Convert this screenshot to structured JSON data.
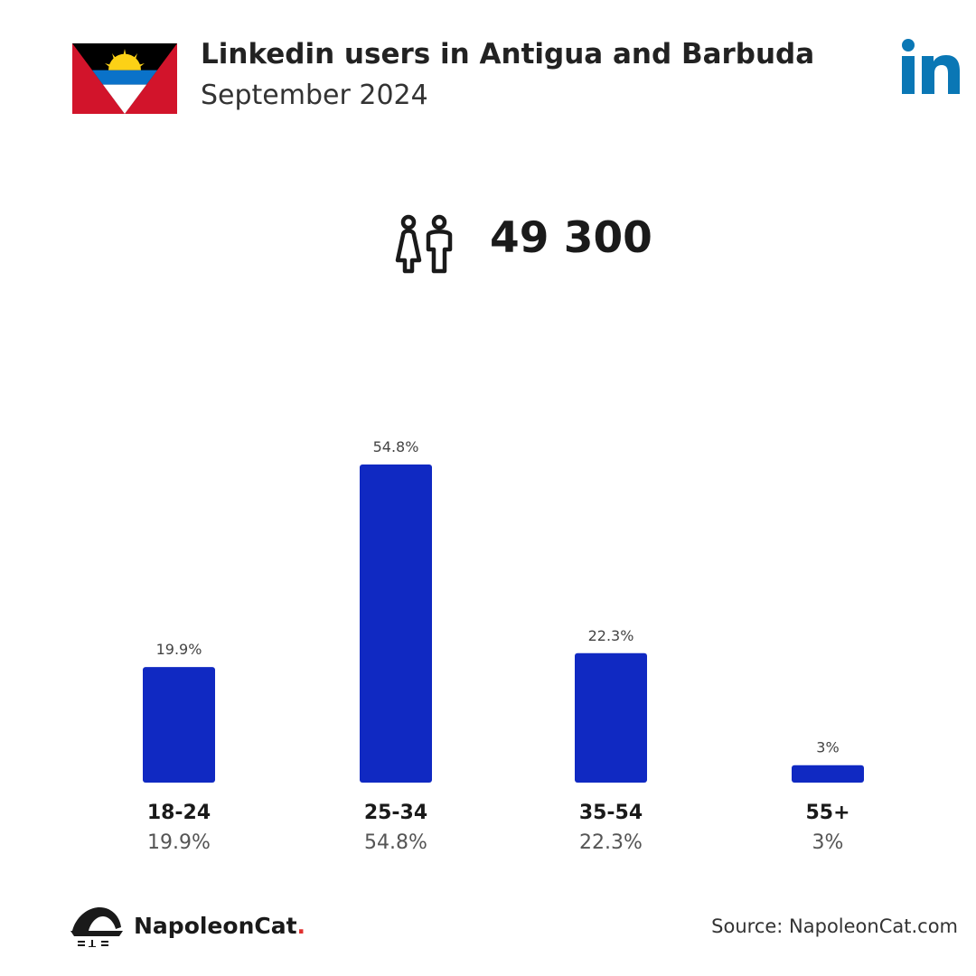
{
  "header": {
    "title": "Linkedin users in Antigua and Barbuda",
    "subtitle": "September 2024"
  },
  "flag": {
    "name": "antigua-and-barbuda-flag"
  },
  "logo": {
    "icon": "linkedin-logo-icon",
    "text": "in",
    "color": "#0a77b5"
  },
  "users": {
    "icon": "users-icon",
    "total": "49 300"
  },
  "chart_data": {
    "type": "bar",
    "categories": [
      "18-24",
      "25-34",
      "35-54",
      "55+"
    ],
    "values": [
      19.9,
      54.8,
      22.3,
      3
    ],
    "value_labels": [
      "19.9%",
      "54.8%",
      "22.3%",
      "3%"
    ],
    "title": "",
    "xlabel": "",
    "ylabel": "",
    "ylim": [
      0,
      54.8
    ],
    "grid": false,
    "bar_color": "#1029c2"
  },
  "footer": {
    "brand": "NapoleonCat",
    "brand_dot": ".",
    "source": "Source: NapoleonCat.com"
  }
}
